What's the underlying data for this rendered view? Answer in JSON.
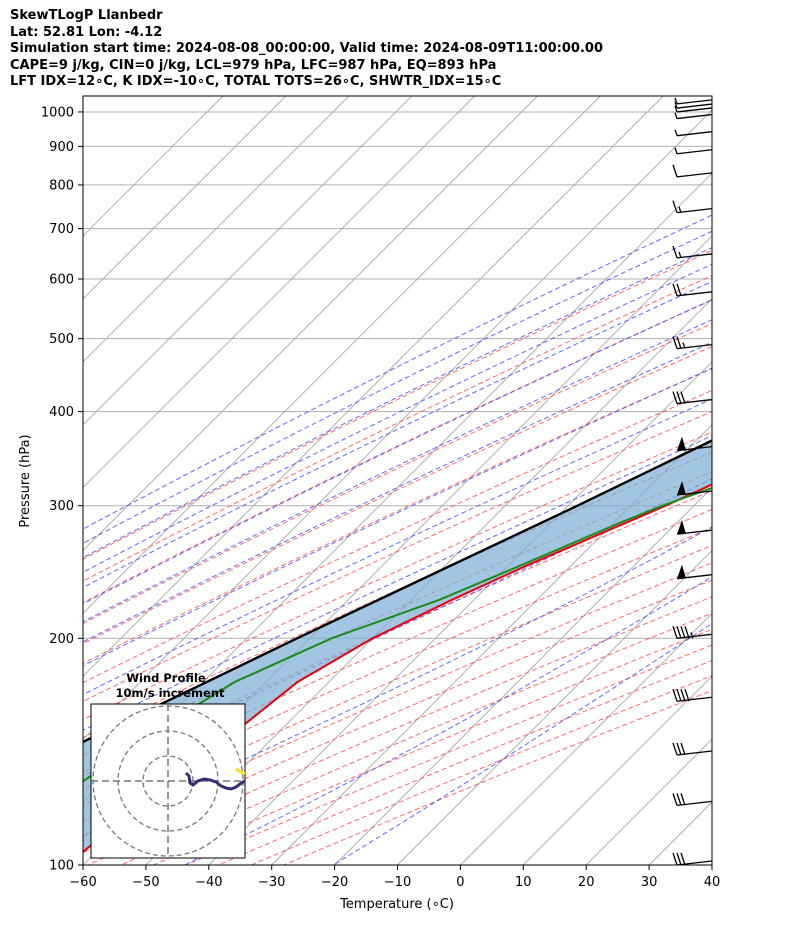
{
  "header": {
    "line1": "SkewTLogP Llanbedr",
    "line2": "Lat: 52.81   Lon: -4.12",
    "line3": "Simulation start time: 2024-08-08_00:00:00, Valid time: 2024-08-09T11:00:00.00",
    "line4": "CAPE=9 j/kg, CIN=0 j/kg, LCL=979 hPa, LFC=987 hPa, EQ=893 hPa",
    "line5": "LFT IDX=12∘C, K IDX=-10∘C, TOTAL TOTS=26∘C, SHWTR_IDX=15∘C"
  },
  "chart_data": {
    "type": "skewt-logp",
    "xlabel": "Temperature (∘C)",
    "ylabel": "Pressure (hPa)",
    "xlim": [
      -60,
      40
    ],
    "ylim": [
      1050,
      100
    ],
    "y_scale": "log",
    "grid": true,
    "x_ticks": [
      -60,
      -50,
      -40,
      -30,
      -20,
      -10,
      0,
      10,
      20,
      30,
      40
    ],
    "y_ticks": [
      1000,
      900,
      800,
      700,
      600,
      500,
      400,
      300,
      200,
      100
    ],
    "colors": {
      "temperature": "#e8000b",
      "dewpoint": "#1a8c1a",
      "parcel": "#000000",
      "cape_fill": "#7aaed4",
      "dry_adiabat": "#ff5050",
      "moist_adiabat": "#4040ff",
      "mixing_ratio": "#9a2fc0",
      "isotherm": "#999999"
    },
    "series": [
      {
        "key": "temperature",
        "points": [
          [
            1000,
            14.0
          ],
          [
            975,
            13.0
          ],
          [
            950,
            12.4
          ],
          [
            925,
            11.9
          ],
          [
            900,
            11.7
          ],
          [
            850,
            11.4
          ],
          [
            800,
            11.4
          ],
          [
            750,
            11.6
          ],
          [
            700,
            11.4
          ],
          [
            650,
            10.0
          ],
          [
            600,
            7.2
          ],
          [
            550,
            4.0
          ],
          [
            500,
            0.0
          ],
          [
            450,
            -4.0
          ],
          [
            400,
            -9.0
          ],
          [
            350,
            -15.0
          ],
          [
            300,
            -24.5
          ],
          [
            275,
            -30.5
          ],
          [
            250,
            -37.0
          ],
          [
            225,
            -43.5
          ],
          [
            200,
            -50.0
          ],
          [
            175,
            -55.0
          ],
          [
            150,
            -57.0
          ],
          [
            125,
            -60.5
          ],
          [
            110,
            -61.5
          ],
          [
            100,
            -62.5
          ]
        ]
      },
      {
        "key": "dewpoint",
        "points": [
          [
            1000,
            12.7
          ],
          [
            975,
            12.0
          ],
          [
            950,
            11.0
          ],
          [
            900,
            9.4
          ],
          [
            850,
            7.0
          ],
          [
            800,
            2.5
          ],
          [
            750,
            -3.8
          ],
          [
            700,
            -10.7
          ],
          [
            650,
            -14.0
          ],
          [
            600,
            -14.0
          ],
          [
            550,
            -10.0
          ],
          [
            500,
            -11.0
          ],
          [
            450,
            -16.5
          ],
          [
            425,
            -17.2
          ],
          [
            400,
            -17.0
          ],
          [
            375,
            -15.0
          ],
          [
            350,
            -13.8
          ],
          [
            325,
            -17.5
          ],
          [
            300,
            -25.0
          ],
          [
            285,
            -29.0
          ],
          [
            250,
            -38.0
          ],
          [
            225,
            -45.5
          ],
          [
            200,
            -56.5
          ],
          [
            175,
            -65.0
          ],
          [
            150,
            -70.0
          ],
          [
            125,
            -74.0
          ],
          [
            110,
            -76.0
          ],
          [
            100,
            -77.5
          ]
        ]
      },
      {
        "key": "parcel",
        "points": [
          [
            1000,
            14.0
          ],
          [
            900,
            11.6
          ],
          [
            800,
            8.8
          ],
          [
            700,
            4.4
          ],
          [
            600,
            -2.3
          ],
          [
            500,
            -11.0
          ],
          [
            400,
            -22.6
          ],
          [
            300,
            -38.5
          ],
          [
            200,
            -62.0
          ],
          [
            150,
            -78.0
          ],
          [
            100,
            -100.0
          ]
        ]
      }
    ],
    "wind_barbs": [
      {
        "p": 100,
        "kt": 30
      },
      {
        "p": 120,
        "kt": 30
      },
      {
        "p": 140,
        "kt": 30
      },
      {
        "p": 165,
        "kt": 40
      },
      {
        "p": 200,
        "kt": 45
      },
      {
        "p": 240,
        "kt": 50
      },
      {
        "p": 275,
        "kt": 50
      },
      {
        "p": 310,
        "kt": 50
      },
      {
        "p": 355,
        "kt": 50
      },
      {
        "p": 410,
        "kt": 30
      },
      {
        "p": 485,
        "kt": 25
      },
      {
        "p": 570,
        "kt": 20
      },
      {
        "p": 640,
        "kt": 15
      },
      {
        "p": 735,
        "kt": 15
      },
      {
        "p": 820,
        "kt": 10
      },
      {
        "p": 880,
        "kt": 5
      },
      {
        "p": 930,
        "kt": 5
      },
      {
        "p": 980,
        "kt": 5
      },
      {
        "p": 1000,
        "kt": 5
      },
      {
        "p": 1012,
        "kt": 5
      },
      {
        "p": 1025,
        "kt": 5
      }
    ],
    "hodograph": {
      "title": "Wind Profile",
      "subtitle": "10m/s increment",
      "rings": 3
    }
  }
}
